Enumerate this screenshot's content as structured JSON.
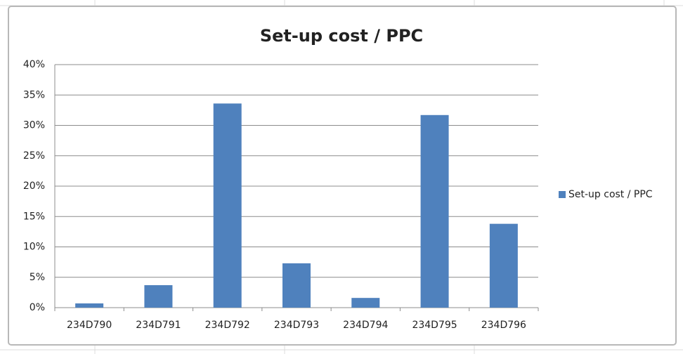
{
  "chart_data": {
    "type": "bar",
    "title": "Set-up cost / PPC",
    "categories": [
      "234D790",
      "234D791",
      "234D792",
      "234D793",
      "234D794",
      "234D795",
      "234D796"
    ],
    "series": [
      {
        "name": "Set-up cost / PPC",
        "color": "#4f81bd",
        "values": [
          0.7,
          3.7,
          33.6,
          7.3,
          1.6,
          31.7,
          13.8
        ]
      }
    ],
    "ylim": [
      0,
      40
    ],
    "yticks": [
      {
        "value": 0,
        "label": "0%"
      },
      {
        "value": 5,
        "label": "5%"
      },
      {
        "value": 10,
        "label": "10%"
      },
      {
        "value": 15,
        "label": "15%"
      },
      {
        "value": 20,
        "label": "20%"
      },
      {
        "value": 25,
        "label": "25%"
      },
      {
        "value": 30,
        "label": "30%"
      },
      {
        "value": 35,
        "label": "35%"
      },
      {
        "value": 40,
        "label": "40%"
      }
    ],
    "grid": true,
    "legend": "right"
  }
}
